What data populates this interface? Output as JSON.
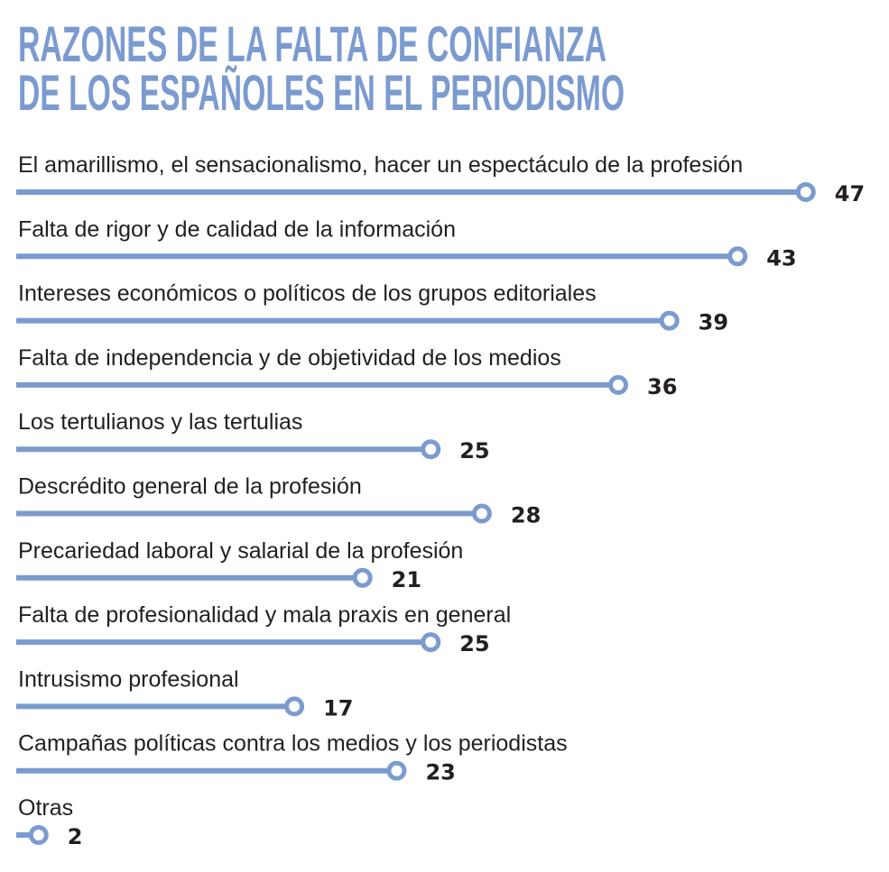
{
  "chart_data": {
    "type": "bar",
    "title": [
      "RAZONES DE LA FALTA DE CONFIANZA",
      "DE LOS ESPAÑOLES EN EL PERIODISMO"
    ],
    "categories": [
      "El amarillismo, el sensacionalismo, hacer un espectáculo de la profesión",
      "Falta de rigor y de calidad de la información",
      "Intereses económicos o políticos de los grupos editoriales",
      "Falta de independencia y de objetividad de los medios",
      "Los tertulianos y las tertulias",
      "Descrédito general de la profesión",
      "Precariedad laboral y salarial de la profesión",
      "Falta de profesionalidad y mala praxis en general",
      "Intrusismo profesional",
      "Campañas políticas contra los medios y los periodistas",
      "Otras"
    ],
    "values": [
      47,
      43,
      39,
      36,
      25,
      28,
      21,
      25,
      17,
      23,
      2
    ],
    "xlabel": "",
    "ylabel": "",
    "xlim": [
      0,
      47
    ],
    "orientation": "horizontal",
    "grid": false,
    "color": "#7b9bd0",
    "text_color": "#231f20"
  }
}
